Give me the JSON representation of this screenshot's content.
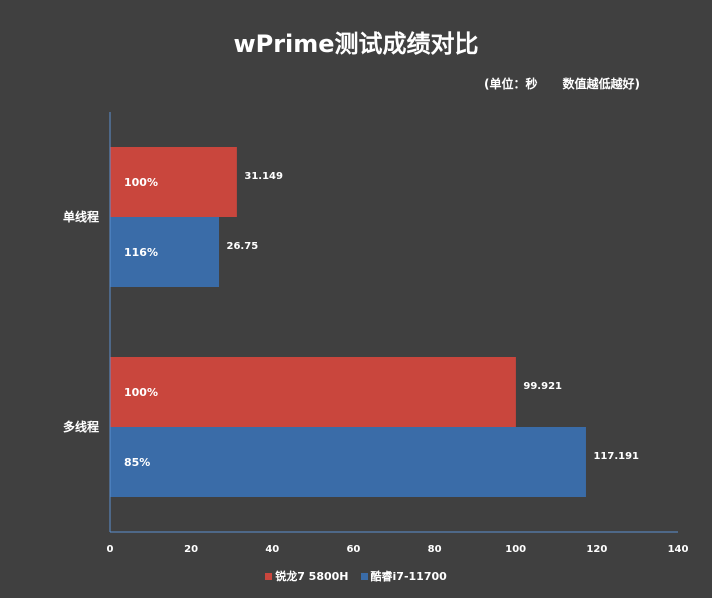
{
  "chart_data": {
    "type": "bar",
    "orientation": "horizontal",
    "title": "wPrime测试成绩对比",
    "note": "(单位：秒      数值越低越好)",
    "categories": [
      "单线程",
      "多线程"
    ],
    "series": [
      {
        "name": "锐龙7 5800H",
        "color": "#c9463d",
        "values": [
          31.149,
          99.921
        ],
        "value_labels": [
          "31.149",
          "99.921"
        ],
        "percent_labels": [
          "100%",
          "100%"
        ]
      },
      {
        "name": "酷睿i7-11700",
        "color": "#3a6ca8",
        "values": [
          26.75,
          117.191
        ],
        "value_labels": [
          "26.75",
          "117.191"
        ],
        "percent_labels": [
          "116%",
          "85%"
        ]
      }
    ],
    "xlim": [
      0,
      140
    ],
    "xticks": [
      "0",
      "20",
      "40",
      "60",
      "80",
      "100",
      "120",
      "140"
    ],
    "grid": false,
    "legend_position": "bottom"
  }
}
